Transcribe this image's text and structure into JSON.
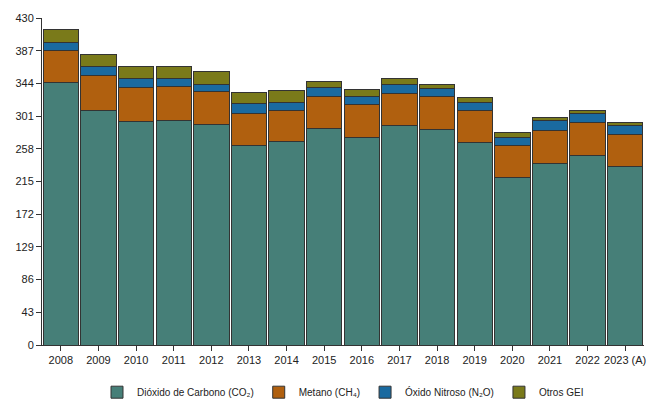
{
  "chart_data": {
    "type": "bar",
    "stacked": true,
    "grid": false,
    "legend": "bottom",
    "categories": [
      "2008",
      "2009",
      "2010",
      "2011",
      "2012",
      "2013",
      "2014",
      "2015",
      "2016",
      "2017",
      "2018",
      "2019",
      "2020",
      "2021",
      "2022",
      "2023 (A)"
    ],
    "ylim": [
      0,
      430
    ],
    "yticks": [
      0,
      43,
      86,
      129,
      172,
      215,
      258,
      301,
      344,
      387,
      430
    ],
    "series": [
      {
        "name": "Dióxido de Carbono (CO₂)",
        "color": "#467f78",
        "values": [
          345,
          308,
          294,
          295,
          290,
          263,
          267,
          285,
          273,
          289,
          284,
          266,
          220,
          239,
          249,
          235
        ]
      },
      {
        "name": "Metano (CH₄)",
        "color": "#b0600f",
        "values": [
          42,
          46,
          44,
          45,
          43,
          42,
          41,
          42,
          43,
          42,
          43,
          42,
          42,
          43,
          44,
          42
        ]
      },
      {
        "name": "Óxido Nitroso (N₂O)",
        "color": "#1a6aa0",
        "values": [
          11,
          12,
          13,
          11,
          10,
          12,
          11,
          11,
          11,
          11,
          10,
          11,
          11,
          13,
          11,
          12
        ]
      },
      {
        "name": "Otros GEI",
        "color": "#7a7a1a",
        "values": [
          17,
          16,
          15,
          15,
          17,
          15,
          16,
          9,
          9,
          8,
          6,
          7,
          6,
          4,
          4,
          3
        ]
      }
    ]
  }
}
